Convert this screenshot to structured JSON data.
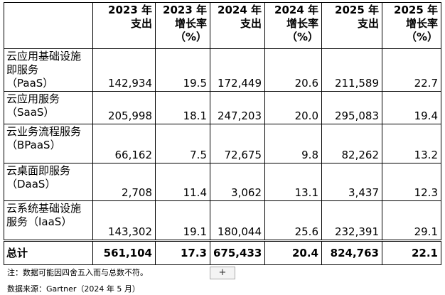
{
  "table": {
    "header": [
      [
        "2023 年",
        "支出"
      ],
      [
        "2023 年",
        "增长率",
        "（%）"
      ],
      [
        "2024 年",
        "支出"
      ],
      [
        "2024 年",
        "增长率",
        "（%）"
      ],
      [
        "2025 年",
        "支出"
      ],
      [
        "2025 年",
        "增长率",
        "（%）"
      ]
    ],
    "rows": [
      {
        "label": [
          "云应用基础设施",
          "即服务",
          "（PaaS）"
        ],
        "values": [
          "142,934",
          "19.5",
          "172,449",
          "20.6",
          "211,589",
          "22.7"
        ]
      },
      {
        "label": [
          "云应用服务",
          "（SaaS）"
        ],
        "values": [
          "205,998",
          "18.1",
          "247,203",
          "20.0",
          "295,083",
          "19.4"
        ]
      },
      {
        "label": [
          "云业务流程服务",
          "（BPaaS）"
        ],
        "values": [
          "66,162",
          "7.5",
          "72,675",
          "9.8",
          "82,262",
          "13.2"
        ]
      },
      {
        "label": [
          "云桌面即服务",
          "（DaaS）"
        ],
        "values": [
          "2,708",
          "11.4",
          "3,062",
          "13.1",
          "3,437",
          "12.3"
        ]
      },
      {
        "label": [
          "云系统基础设施",
          "服务（IaaS）"
        ],
        "values": [
          "143,302",
          "19.1",
          "180,044",
          "25.6",
          "232,391",
          "29.1"
        ]
      }
    ],
    "total": {
      "label": [
        "总计"
      ],
      "values": [
        "561,104",
        "17.3",
        "675,433",
        "20.4",
        "824,763",
        "22.1"
      ]
    }
  },
  "notes": [
    "注：数据可能因四舍五入而与总数不符。",
    "数据来源：Gartner（2024 年 5 月）"
  ]
}
